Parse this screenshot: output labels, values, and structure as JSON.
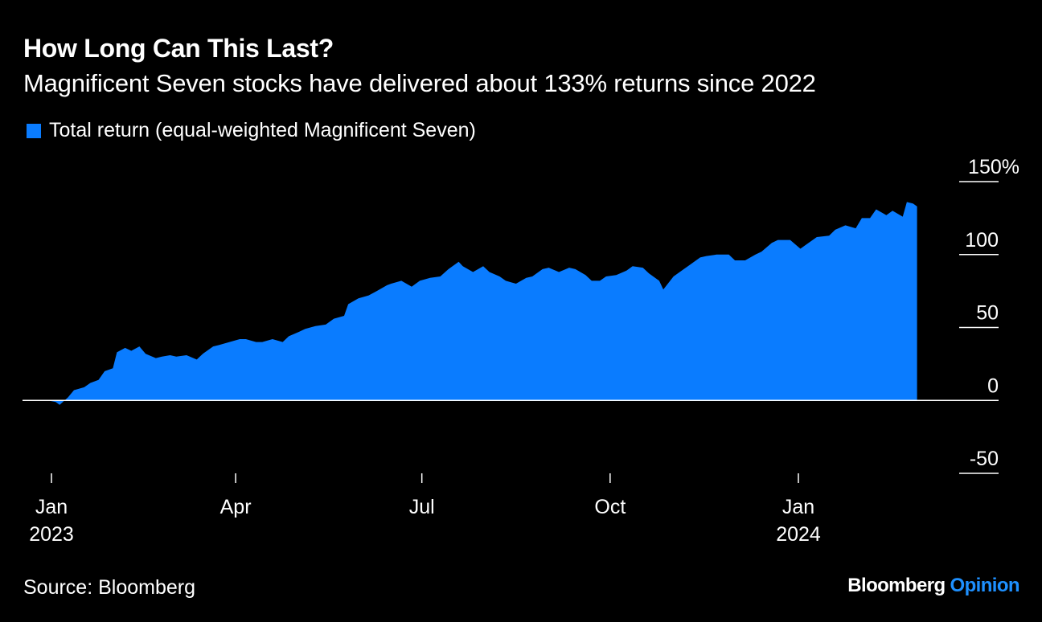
{
  "title": "How Long Can This Last?",
  "subtitle": "Magnificent Seven stocks have delivered about 133% returns since 2022",
  "source": "Source: Bloomberg",
  "brand": {
    "name": "Bloomberg",
    "section": "Opinion",
    "section_color": "#1e90ff"
  },
  "colors": {
    "background": "#000000",
    "series": "#0a7cff",
    "text": "#ffffff",
    "grid": "#ffffff"
  },
  "chart_data": {
    "type": "area",
    "title": "How Long Can This Last?",
    "subtitle": "Magnificent Seven stocks have delivered about 133% returns since 2022",
    "ylim": [
      -50,
      150
    ],
    "y_ticks": [
      {
        "value": 150,
        "label": "150%"
      },
      {
        "value": 100,
        "label": "100"
      },
      {
        "value": 50,
        "label": "50"
      },
      {
        "value": 0,
        "label": "0"
      },
      {
        "value": -50,
        "label": "-50"
      }
    ],
    "x_ticks": [
      {
        "date": "2023-01-01",
        "label": "Jan",
        "sublabel": "2023"
      },
      {
        "date": "2023-04-01",
        "label": "Apr",
        "sublabel": ""
      },
      {
        "date": "2023-07-01",
        "label": "Jul",
        "sublabel": ""
      },
      {
        "date": "2023-10-01",
        "label": "Oct",
        "sublabel": ""
      },
      {
        "date": "2024-01-01",
        "label": "Jan",
        "sublabel": "2024"
      }
    ],
    "xlim": [
      "2022-12-31",
      "2024-02-29"
    ],
    "legend_position": "top-left",
    "grid": false,
    "series": [
      {
        "name": "Total return (equal-weighted Magnificent Seven)",
        "color": "#0a7cff",
        "points": [
          [
            "2022-12-30",
            0
          ],
          [
            "2023-01-03",
            -1
          ],
          [
            "2023-01-05",
            -3
          ],
          [
            "2023-01-09",
            2
          ],
          [
            "2023-01-12",
            7
          ],
          [
            "2023-01-17",
            9
          ],
          [
            "2023-01-20",
            12
          ],
          [
            "2023-01-24",
            14
          ],
          [
            "2023-01-27",
            20
          ],
          [
            "2023-01-31",
            22
          ],
          [
            "2023-02-02",
            33
          ],
          [
            "2023-02-06",
            36
          ],
          [
            "2023-02-09",
            34
          ],
          [
            "2023-02-13",
            37
          ],
          [
            "2023-02-16",
            32
          ],
          [
            "2023-02-21",
            29
          ],
          [
            "2023-02-24",
            30
          ],
          [
            "2023-02-28",
            31
          ],
          [
            "2023-03-03",
            30
          ],
          [
            "2023-03-08",
            31
          ],
          [
            "2023-03-13",
            28
          ],
          [
            "2023-03-16",
            32
          ],
          [
            "2023-03-21",
            37
          ],
          [
            "2023-03-24",
            38
          ],
          [
            "2023-03-29",
            40
          ],
          [
            "2023-04-03",
            42
          ],
          [
            "2023-04-06",
            42
          ],
          [
            "2023-04-11",
            40
          ],
          [
            "2023-04-14",
            40
          ],
          [
            "2023-04-19",
            42
          ],
          [
            "2023-04-24",
            40
          ],
          [
            "2023-04-27",
            44
          ],
          [
            "2023-05-02",
            47
          ],
          [
            "2023-05-05",
            49
          ],
          [
            "2023-05-10",
            51
          ],
          [
            "2023-05-15",
            52
          ],
          [
            "2023-05-19",
            56
          ],
          [
            "2023-05-24",
            58
          ],
          [
            "2023-05-26",
            66
          ],
          [
            "2023-05-31",
            70
          ],
          [
            "2023-06-05",
            72
          ],
          [
            "2023-06-09",
            75
          ],
          [
            "2023-06-14",
            79
          ],
          [
            "2023-06-16",
            80
          ],
          [
            "2023-06-21",
            82
          ],
          [
            "2023-06-26",
            78
          ],
          [
            "2023-06-30",
            82
          ],
          [
            "2023-07-05",
            84
          ],
          [
            "2023-07-10",
            85
          ],
          [
            "2023-07-14",
            90
          ],
          [
            "2023-07-19",
            95
          ],
          [
            "2023-07-21",
            92
          ],
          [
            "2023-07-26",
            88
          ],
          [
            "2023-07-31",
            92
          ],
          [
            "2023-08-03",
            88
          ],
          [
            "2023-08-08",
            85
          ],
          [
            "2023-08-11",
            82
          ],
          [
            "2023-08-16",
            80
          ],
          [
            "2023-08-21",
            84
          ],
          [
            "2023-08-24",
            85
          ],
          [
            "2023-08-29",
            90
          ],
          [
            "2023-09-01",
            91
          ],
          [
            "2023-09-06",
            88
          ],
          [
            "2023-09-11",
            91
          ],
          [
            "2023-09-14",
            90
          ],
          [
            "2023-09-19",
            86
          ],
          [
            "2023-09-22",
            82
          ],
          [
            "2023-09-26",
            82
          ],
          [
            "2023-09-29",
            85
          ],
          [
            "2023-10-04",
            86
          ],
          [
            "2023-10-09",
            89
          ],
          [
            "2023-10-12",
            92
          ],
          [
            "2023-10-17",
            91
          ],
          [
            "2023-10-20",
            87
          ],
          [
            "2023-10-25",
            82
          ],
          [
            "2023-10-27",
            76
          ],
          [
            "2023-11-01",
            85
          ],
          [
            "2023-11-06",
            90
          ],
          [
            "2023-11-09",
            93
          ],
          [
            "2023-11-14",
            98
          ],
          [
            "2023-11-17",
            99
          ],
          [
            "2023-11-22",
            100
          ],
          [
            "2023-11-28",
            100
          ],
          [
            "2023-12-01",
            96
          ],
          [
            "2023-12-06",
            96
          ],
          [
            "2023-12-11",
            100
          ],
          [
            "2023-12-14",
            102
          ],
          [
            "2023-12-19",
            108
          ],
          [
            "2023-12-22",
            110
          ],
          [
            "2023-12-28",
            110
          ],
          [
            "2024-01-02",
            104
          ],
          [
            "2024-01-05",
            107
          ],
          [
            "2024-01-10",
            112
          ],
          [
            "2024-01-16",
            113
          ],
          [
            "2024-01-19",
            117
          ],
          [
            "2024-01-24",
            120
          ],
          [
            "2024-01-29",
            118
          ],
          [
            "2024-02-01",
            125
          ],
          [
            "2024-02-05",
            125
          ],
          [
            "2024-02-08",
            131
          ],
          [
            "2024-02-13",
            127
          ],
          [
            "2024-02-16",
            130
          ],
          [
            "2024-02-21",
            126
          ],
          [
            "2024-02-23",
            136
          ],
          [
            "2024-02-26",
            135
          ],
          [
            "2024-02-28",
            133
          ]
        ]
      }
    ]
  }
}
